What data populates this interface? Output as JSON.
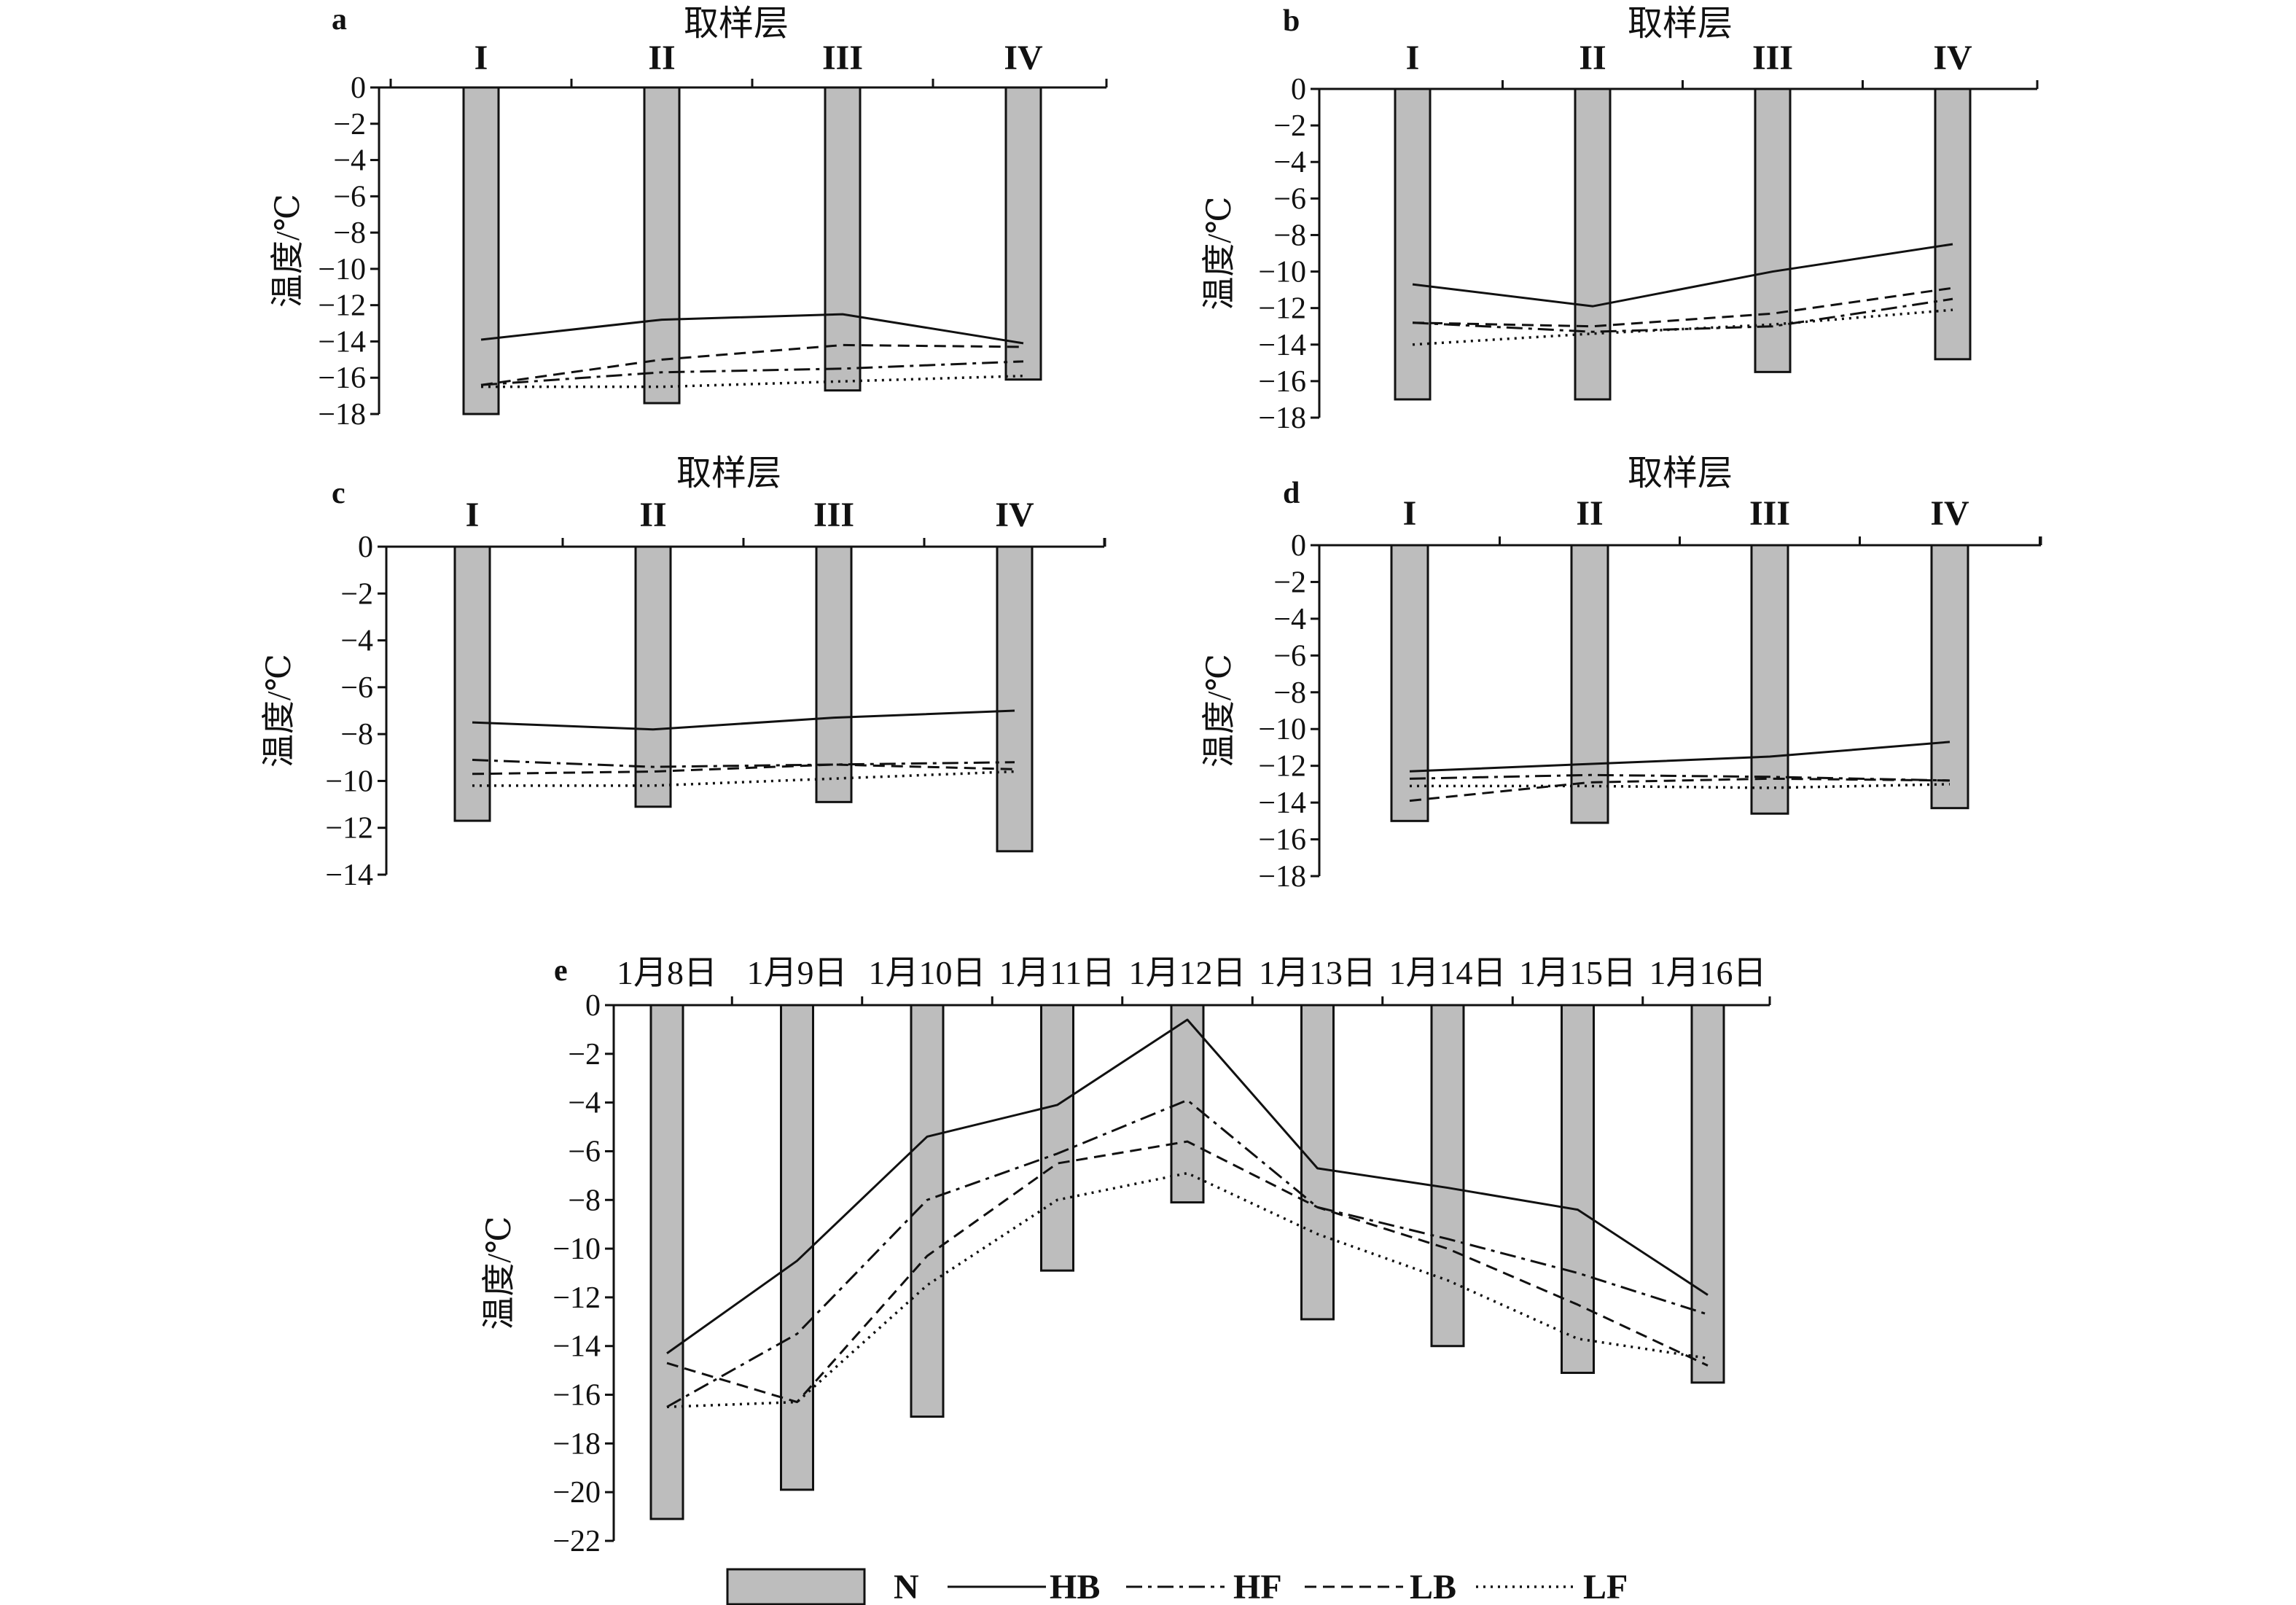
{
  "figure": {
    "xlabel": "取样层",
    "ylabel": "温度/℃",
    "legend": [
      {
        "name": "N",
        "kind": "bar",
        "color": "#bdbdbd"
      },
      {
        "name": "HB",
        "kind": "line",
        "dash": "solid"
      },
      {
        "name": "HF",
        "kind": "line",
        "dash": "dashdot"
      },
      {
        "name": "LB",
        "kind": "line",
        "dash": "dashed"
      },
      {
        "name": "LF",
        "kind": "line",
        "dash": "dotted"
      }
    ]
  },
  "chart_data": [
    {
      "label": "a",
      "type": "bar+line",
      "xlabel": "取样层",
      "ylabel": "温度/℃",
      "categories": [
        "I",
        "II",
        "III",
        "IV"
      ],
      "ylim": [
        -18,
        0
      ],
      "ystep": 2,
      "bar_series": {
        "name": "N",
        "values": [
          -18.0,
          -17.4,
          -16.7,
          -16.1
        ]
      },
      "series": [
        {
          "name": "HB",
          "values": [
            -13.9,
            -12.8,
            -12.5,
            -14.1
          ]
        },
        {
          "name": "HF",
          "values": [
            -16.4,
            -15.7,
            -15.5,
            -15.1
          ]
        },
        {
          "name": "LB",
          "values": [
            -16.4,
            -15.0,
            -14.2,
            -14.3
          ]
        },
        {
          "name": "LF",
          "values": [
            -16.5,
            -16.5,
            -16.2,
            -15.9
          ]
        }
      ]
    },
    {
      "label": "b",
      "type": "bar+line",
      "xlabel": "取样层",
      "ylabel": "温度/℃",
      "categories": [
        "I",
        "II",
        "III",
        "IV"
      ],
      "ylim": [
        -18,
        0
      ],
      "ystep": 2,
      "bar_series": {
        "name": "N",
        "values": [
          -17.0,
          -17.0,
          -15.5,
          -14.8
        ]
      },
      "series": [
        {
          "name": "HB",
          "values": [
            -10.7,
            -11.9,
            -10.0,
            -8.5
          ]
        },
        {
          "name": "HF",
          "values": [
            -12.8,
            -13.3,
            -13.0,
            -11.5
          ]
        },
        {
          "name": "LB",
          "values": [
            -12.8,
            -13.0,
            -12.3,
            -10.9
          ]
        },
        {
          "name": "LF",
          "values": [
            -14.0,
            -13.4,
            -12.9,
            -12.1
          ]
        }
      ]
    },
    {
      "label": "c",
      "type": "bar+line",
      "xlabel": "取样层",
      "ylabel": "温度/℃",
      "categories": [
        "I",
        "II",
        "III",
        "IV"
      ],
      "ylim": [
        -14,
        0
      ],
      "ystep": 2,
      "bar_series": {
        "name": "N",
        "values": [
          -11.7,
          -11.1,
          -10.9,
          -13.0
        ]
      },
      "series": [
        {
          "name": "HB",
          "values": [
            -7.5,
            -7.8,
            -7.3,
            -7.0
          ]
        },
        {
          "name": "HF",
          "values": [
            -9.1,
            -9.4,
            -9.3,
            -9.2
          ]
        },
        {
          "name": "LB",
          "values": [
            -9.7,
            -9.6,
            -9.3,
            -9.5
          ]
        },
        {
          "name": "LF",
          "values": [
            -10.2,
            -10.2,
            -9.9,
            -9.6
          ]
        }
      ]
    },
    {
      "label": "d",
      "type": "bar+line",
      "xlabel": "取样层",
      "ylabel": "温度/℃",
      "categories": [
        "I",
        "II",
        "III",
        "IV"
      ],
      "ylim": [
        -18,
        0
      ],
      "ystep": 2,
      "bar_series": {
        "name": "N",
        "values": [
          -15.0,
          -15.1,
          -14.6,
          -14.3
        ]
      },
      "series": [
        {
          "name": "HB",
          "values": [
            -12.3,
            -11.9,
            -11.5,
            -10.7
          ]
        },
        {
          "name": "HF",
          "values": [
            -12.7,
            -12.5,
            -12.6,
            -12.8
          ]
        },
        {
          "name": "LB",
          "values": [
            -13.9,
            -12.9,
            -12.7,
            -12.8
          ]
        },
        {
          "name": "LF",
          "values": [
            -13.1,
            -13.1,
            -13.2,
            -13.0
          ]
        }
      ]
    },
    {
      "label": "e",
      "type": "bar+line",
      "xlabel": "",
      "ylabel": "温度/℃",
      "categories": [
        "1月8日",
        "1月9日",
        "1月10日",
        "1月11日",
        "1月12日",
        "1月13日",
        "1月14日",
        "1月15日",
        "1月16日"
      ],
      "ylim": [
        -22,
        0
      ],
      "ystep": 2,
      "bar_series": {
        "name": "N",
        "values": [
          -21.1,
          -19.9,
          -16.9,
          -10.9,
          -8.1,
          -12.9,
          -14.0,
          -15.1,
          -15.5
        ]
      },
      "series": [
        {
          "name": "HB",
          "values": [
            -14.3,
            -10.5,
            -5.4,
            -4.1,
            -0.6,
            -6.7,
            -7.5,
            -8.4,
            -11.9
          ]
        },
        {
          "name": "HF",
          "values": [
            -16.5,
            -13.5,
            -8.0,
            -6.1,
            -3.9,
            -8.3,
            -9.6,
            -11.0,
            -12.7
          ]
        },
        {
          "name": "LB",
          "values": [
            -14.7,
            -16.3,
            -10.3,
            -6.5,
            -5.6,
            -8.3,
            -10.0,
            -12.3,
            -14.8
          ]
        },
        {
          "name": "LF",
          "values": [
            -16.5,
            -16.3,
            -11.5,
            -8.0,
            -6.9,
            -9.4,
            -11.3,
            -13.7,
            -14.5
          ]
        }
      ]
    }
  ]
}
